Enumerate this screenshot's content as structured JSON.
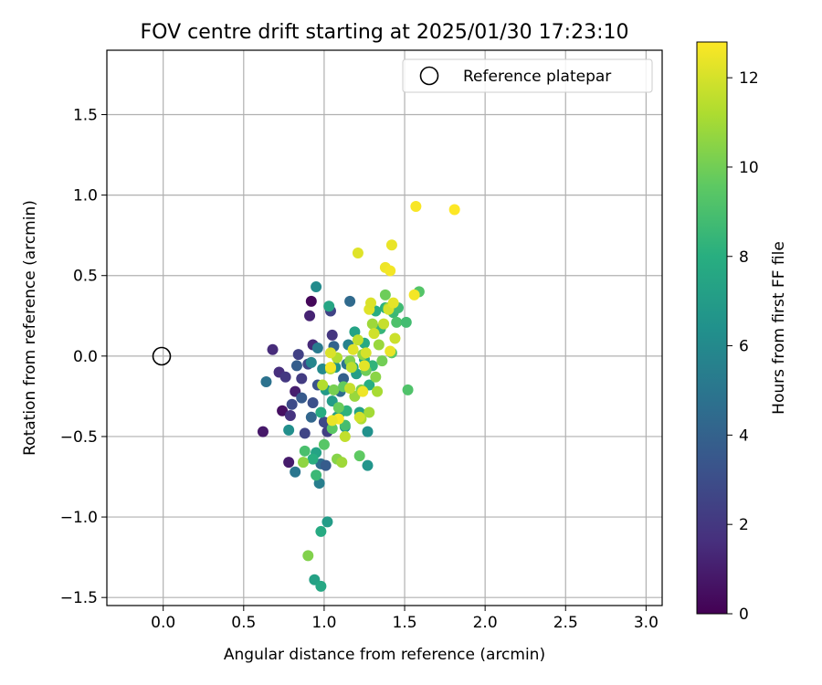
{
  "chart_data": {
    "type": "scatter",
    "title": "FOV centre drift starting at 2025/01/30 17:23:10",
    "xlabel": "Angular distance from reference (arcmin)",
    "ylabel": "Rotation from reference (arcmin)",
    "xlim": [
      -0.35,
      3.1
    ],
    "ylim": [
      -1.55,
      1.9
    ],
    "xticks": [
      0.0,
      0.5,
      1.0,
      1.5,
      2.0,
      2.5,
      3.0
    ],
    "xtick_labels": [
      "0.0",
      "0.5",
      "1.0",
      "1.5",
      "2.0",
      "2.5",
      "3.0"
    ],
    "yticks": [
      -1.5,
      -1.0,
      -0.5,
      0.0,
      0.5,
      1.0,
      1.5
    ],
    "ytick_labels": [
      "−1.5",
      "−1.0",
      "−0.5",
      "0.0",
      "0.5",
      "1.0",
      "1.5"
    ],
    "grid": true,
    "legend": {
      "position": "top-right",
      "entries": [
        "Reference platepar"
      ]
    },
    "reference_point": {
      "x": 0.0,
      "y": 0.0
    },
    "colorbar": {
      "label": "Hours from first FF file",
      "min": 0,
      "max": 12.8,
      "ticks": [
        0,
        2,
        4,
        6,
        8,
        10,
        12
      ],
      "tick_labels": [
        "0",
        "2",
        "4",
        "6",
        "8",
        "10",
        "12"
      ],
      "colormap": "viridis"
    },
    "points": [
      [
        0.92,
        0.34,
        0.2
      ],
      [
        0.62,
        -0.47,
        0.8
      ],
      [
        0.91,
        0.25,
        1.2
      ],
      [
        0.68,
        0.04,
        1.5
      ],
      [
        0.78,
        -0.66,
        0.9
      ],
      [
        0.74,
        -0.34,
        0.5
      ],
      [
        0.82,
        -0.22,
        1.0
      ],
      [
        0.79,
        -0.37,
        1.8
      ],
      [
        0.86,
        -0.14,
        2.2
      ],
      [
        0.88,
        -0.48,
        2.6
      ],
      [
        0.93,
        -0.29,
        3.1
      ],
      [
        0.8,
        -0.3,
        2.9
      ],
      [
        0.72,
        -0.1,
        1.6
      ],
      [
        0.76,
        -0.13,
        2.0
      ],
      [
        0.84,
        0.01,
        2.4
      ],
      [
        0.9,
        -0.05,
        2.7
      ],
      [
        0.96,
        -0.18,
        3.3
      ],
      [
        0.83,
        -0.06,
        3.8
      ],
      [
        0.86,
        -0.26,
        3.6
      ],
      [
        0.93,
        0.07,
        1.4
      ],
      [
        1.04,
        0.28,
        2.5
      ],
      [
        1.05,
        0.13,
        1.9
      ],
      [
        1.02,
        -0.47,
        2.3
      ],
      [
        1.0,
        -0.41,
        2.8
      ],
      [
        1.08,
        -0.38,
        3.5
      ],
      [
        1.12,
        -0.14,
        3.9
      ],
      [
        1.16,
        0.34,
        4.4
      ],
      [
        0.64,
        -0.16,
        4.8
      ],
      [
        0.82,
        -0.72,
        5.0
      ],
      [
        0.98,
        -0.67,
        4.6
      ],
      [
        1.01,
        -0.68,
        3.7
      ],
      [
        0.92,
        -0.38,
        4.2
      ],
      [
        1.1,
        -0.22,
        4.5
      ],
      [
        1.06,
        0.06,
        4.1
      ],
      [
        0.95,
        0.43,
        6.1
      ],
      [
        0.97,
        -0.79,
        5.4
      ],
      [
        1.14,
        -0.05,
        4.9
      ],
      [
        1.15,
        0.07,
        5.6
      ],
      [
        0.78,
        -0.46,
        6.3
      ],
      [
        0.96,
        0.05,
        5.2
      ],
      [
        0.92,
        -0.04,
        5.8
      ],
      [
        1.07,
        -0.07,
        6.5
      ],
      [
        1.27,
        -0.68,
        6.6
      ],
      [
        1.27,
        -0.47,
        6.4
      ],
      [
        1.03,
        0.31,
        7.5
      ],
      [
        0.99,
        -0.08,
        6.0
      ],
      [
        1.1,
        -0.35,
        6.8
      ],
      [
        1.2,
        -0.11,
        7.1
      ],
      [
        1.22,
        -0.35,
        7.3
      ],
      [
        1.19,
        0.15,
        7.4
      ],
      [
        1.25,
        0.08,
        7.7
      ],
      [
        1.32,
        0.28,
        7.9
      ],
      [
        1.38,
        0.3,
        8.1
      ],
      [
        1.35,
        0.17,
        8.4
      ],
      [
        1.43,
        0.27,
        8.6
      ],
      [
        1.46,
        0.3,
        8.7
      ],
      [
        1.45,
        0.21,
        9.1
      ],
      [
        1.51,
        0.21,
        8.8
      ],
      [
        1.59,
        0.4,
        9.3
      ],
      [
        1.52,
        -0.21,
        9.2
      ],
      [
        1.3,
        -0.06,
        8.3
      ],
      [
        1.25,
        -0.02,
        7.8
      ],
      [
        1.28,
        -0.18,
        8.0
      ],
      [
        1.18,
        -0.07,
        7.6
      ],
      [
        1.14,
        -0.34,
        8.2
      ],
      [
        1.08,
        -0.38,
        7.2
      ],
      [
        1.05,
        -0.28,
        7.0
      ],
      [
        1.01,
        -0.21,
        6.9
      ],
      [
        1.13,
        -0.44,
        6.7
      ],
      [
        0.98,
        -0.35,
        7.9
      ],
      [
        0.95,
        -0.6,
        7.4
      ],
      [
        0.93,
        -0.64,
        8.0
      ],
      [
        0.95,
        -0.74,
        8.6
      ],
      [
        0.88,
        -0.59,
        9.0
      ],
      [
        1.0,
        -0.55,
        9.4
      ],
      [
        0.94,
        -1.39,
        7.3
      ],
      [
        0.98,
        -1.43,
        7.6
      ],
      [
        0.98,
        -1.09,
        7.8
      ],
      [
        1.02,
        -1.03,
        7.0
      ],
      [
        0.9,
        -1.24,
        10.3
      ],
      [
        0.87,
        -0.66,
        10.6
      ],
      [
        1.08,
        -0.64,
        10.4
      ],
      [
        1.11,
        -0.66,
        10.9
      ],
      [
        1.22,
        -0.62,
        9.6
      ],
      [
        1.05,
        -0.45,
        9.5
      ],
      [
        1.13,
        -0.43,
        8.9
      ],
      [
        1.09,
        -0.32,
        9.8
      ],
      [
        1.06,
        -0.21,
        10.1
      ],
      [
        1.12,
        -0.19,
        9.7
      ],
      [
        1.23,
        -0.21,
        10.2
      ],
      [
        1.26,
        -0.09,
        9.9
      ],
      [
        1.32,
        -0.13,
        10.5
      ],
      [
        1.36,
        -0.03,
        10.0
      ],
      [
        1.42,
        0.02,
        9.5
      ],
      [
        1.34,
        0.07,
        10.8
      ],
      [
        1.38,
        0.38,
        9.9
      ],
      [
        1.4,
        0.3,
        10.7
      ],
      [
        1.3,
        0.2,
        10.9
      ],
      [
        1.24,
        0.01,
        10.6
      ],
      [
        1.16,
        -0.03,
        10.3
      ],
      [
        1.19,
        -0.25,
        10.8
      ],
      [
        1.28,
        -0.35,
        11.0
      ],
      [
        1.23,
        -0.39,
        11.2
      ],
      [
        1.04,
        -0.08,
        11.4
      ],
      [
        1.08,
        -0.01,
        11.3
      ],
      [
        1.21,
        0.1,
        11.6
      ],
      [
        1.31,
        0.14,
        11.9
      ],
      [
        1.37,
        0.2,
        11.7
      ],
      [
        1.4,
        0.29,
        12.0
      ],
      [
        1.28,
        0.29,
        12.2
      ],
      [
        1.29,
        0.33,
        12.1
      ],
      [
        1.43,
        0.33,
        12.3
      ],
      [
        1.42,
        0.69,
        12.4
      ],
      [
        1.21,
        0.64,
        12.2
      ],
      [
        1.38,
        0.55,
        12.5
      ],
      [
        1.41,
        0.53,
        12.6
      ],
      [
        1.57,
        0.93,
        12.7
      ],
      [
        1.81,
        0.91,
        12.8
      ],
      [
        1.56,
        0.38,
        12.6
      ],
      [
        1.44,
        0.11,
        11.8
      ],
      [
        1.41,
        0.03,
        12.4
      ],
      [
        1.26,
        0.02,
        12.0
      ],
      [
        1.17,
        -0.07,
        11.5
      ],
      [
        1.25,
        -0.06,
        12.3
      ],
      [
        1.33,
        -0.22,
        11.1
      ],
      [
        1.24,
        -0.22,
        12.5
      ],
      [
        1.16,
        -0.2,
        11.7
      ],
      [
        1.04,
        0.02,
        12.1
      ],
      [
        1.04,
        -0.07,
        12.6
      ],
      [
        1.18,
        0.04,
        12.2
      ],
      [
        1.09,
        -0.39,
        12.7
      ],
      [
        1.05,
        -0.4,
        12.4
      ],
      [
        1.13,
        -0.5,
        11.6
      ],
      [
        0.99,
        -0.18,
        11.3
      ],
      [
        1.22,
        -0.38,
        11.9
      ]
    ]
  }
}
